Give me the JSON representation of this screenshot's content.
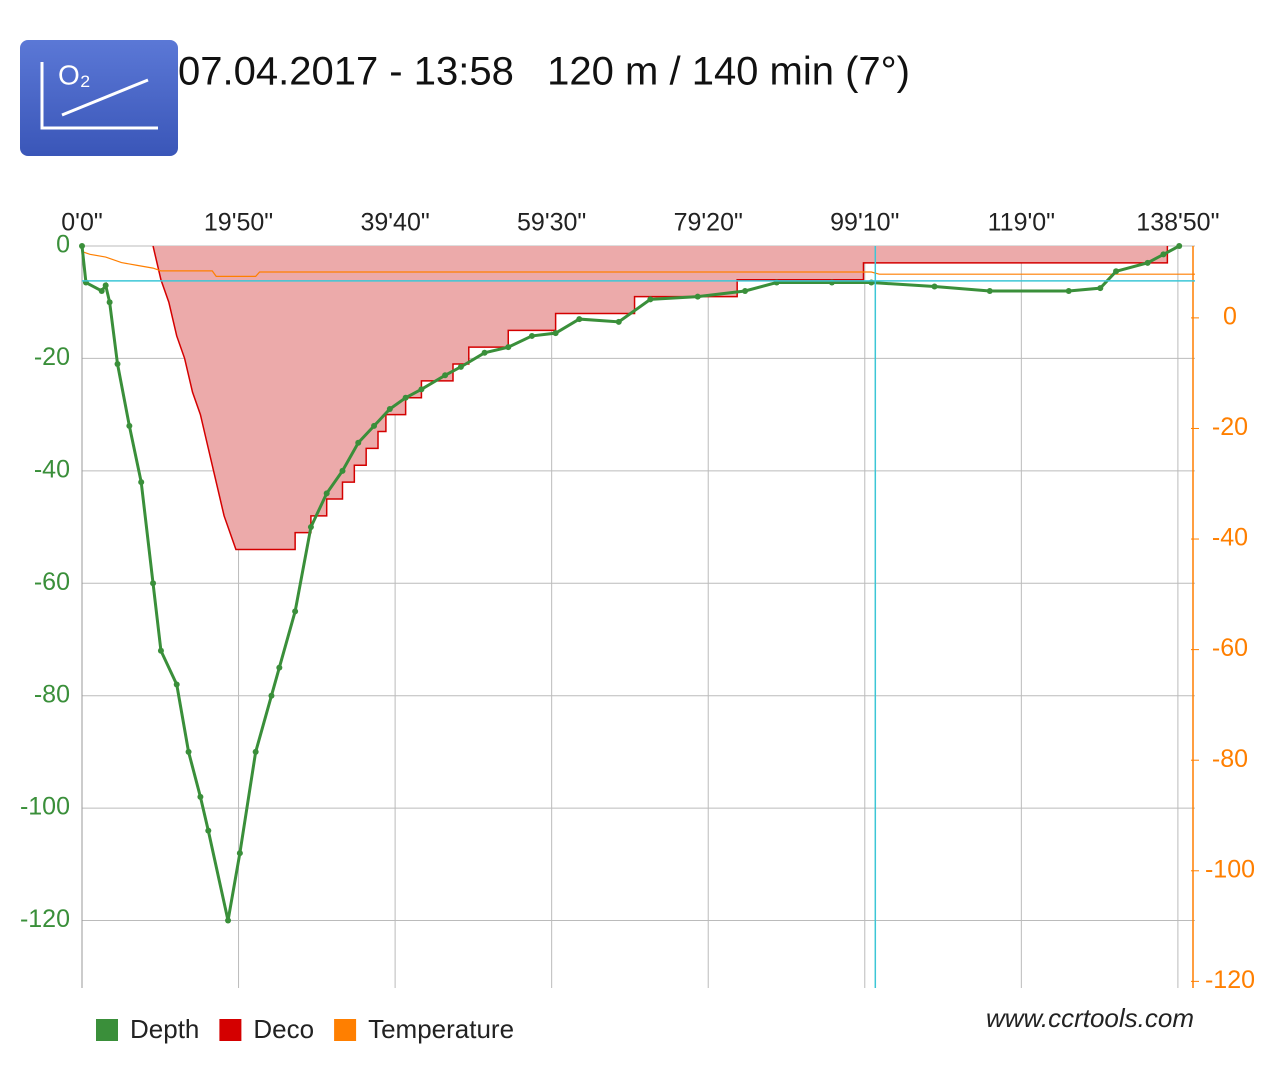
{
  "header": {
    "icon": "O₂",
    "title": "07.04.2017 - 13:58   120 m / 140 min (7°)"
  },
  "watermark": "www.ccrtools.com",
  "chart_data": {
    "type": "line",
    "xlim": [
      0,
      141
    ],
    "xticks": [
      {
        "value": 0,
        "label": "0'0\""
      },
      {
        "value": 19.833,
        "label": "19'50\""
      },
      {
        "value": 39.667,
        "label": "39'40\""
      },
      {
        "value": 59.5,
        "label": "59'30\""
      },
      {
        "value": 79.333,
        "label": "79'20\""
      },
      {
        "value": 99.167,
        "label": "99'10\""
      },
      {
        "value": 119,
        "label": "119'0\""
      },
      {
        "value": 138.833,
        "label": "138'50\""
      }
    ],
    "ylim": [
      -132,
      0
    ],
    "yticks": [
      0,
      -20,
      -40,
      -60,
      -80,
      -100,
      -120
    ],
    "y2lim": [
      -121.2,
      13
    ],
    "y2ticks": [
      0,
      -20,
      -40,
      -60,
      -80,
      -100,
      -120
    ],
    "grid": true,
    "cursor": {
      "x": 100.5,
      "y": -6.2
    },
    "series": [
      {
        "name": "Deco",
        "color": "#d40000",
        "fill": "#ecaaaa",
        "style": "area",
        "x": [
          9,
          10,
          11,
          12,
          13,
          14,
          15,
          16,
          17,
          18,
          19.5,
          27,
          27,
          29,
          29,
          31,
          31,
          33,
          33,
          34.5,
          34.5,
          36,
          36,
          37.5,
          37.5,
          38.5,
          38.5,
          41,
          41,
          43,
          43,
          47,
          47,
          49,
          49,
          54,
          54,
          60,
          60,
          70,
          70,
          83,
          83,
          99,
          99,
          137.5,
          137.5
        ],
        "values": [
          0,
          -6,
          -10,
          -16,
          -20,
          -26,
          -30,
          -36,
          -42,
          -48,
          -54,
          -54,
          -51,
          -51,
          -48,
          -48,
          -45,
          -45,
          -42,
          -42,
          -39,
          -39,
          -36,
          -36,
          -33,
          -33,
          -30,
          -30,
          -27,
          -27,
          -24,
          -24,
          -21,
          -21,
          -18,
          -18,
          -15,
          -15,
          -12,
          -12,
          -9,
          -9,
          -6,
          -6,
          -3,
          -3,
          0
        ]
      },
      {
        "name": "Temperature",
        "color": "#ff7f00",
        "axis": "y2",
        "style": "line",
        "x": [
          0,
          1,
          3,
          5,
          7,
          9,
          10,
          16.5,
          17,
          22,
          22.5,
          60,
          100,
          101,
          141
        ],
        "values": [
          12,
          11.5,
          11,
          10,
          9.5,
          9,
          8.5,
          8.5,
          7.5,
          7.5,
          8.3,
          8.3,
          8.3,
          7.9,
          7.9
        ]
      },
      {
        "name": "Depth",
        "color": "#3a8f3a",
        "style": "dots",
        "x": [
          0,
          0.5,
          2.5,
          3,
          3.5,
          4.5,
          6,
          7.5,
          9,
          10,
          12,
          13.5,
          15,
          16,
          18.5,
          20,
          22,
          24,
          25,
          27,
          29,
          31,
          33,
          35,
          37,
          39,
          41,
          43,
          46,
          48,
          51,
          54,
          57,
          60,
          63,
          68,
          72,
          78,
          84,
          88,
          95,
          100,
          108,
          115,
          125,
          129,
          131,
          135,
          137,
          139
        ],
        "values": [
          0,
          -6.5,
          -8,
          -7,
          -10,
          -21,
          -32,
          -42,
          -60,
          -72,
          -78,
          -90,
          -98,
          -104,
          -120,
          -108,
          -90,
          -80,
          -75,
          -65,
          -50,
          -44,
          -40,
          -35,
          -32,
          -29,
          -27,
          -25.5,
          -23,
          -21.5,
          -19,
          -18,
          -16,
          -15.5,
          -13,
          -13.5,
          -9.5,
          -9,
          -8,
          -6.5,
          -6.5,
          -6.5,
          -7.2,
          -8,
          -8,
          -7.5,
          -4.5,
          -3,
          -1.5,
          0
        ]
      }
    ]
  }
}
